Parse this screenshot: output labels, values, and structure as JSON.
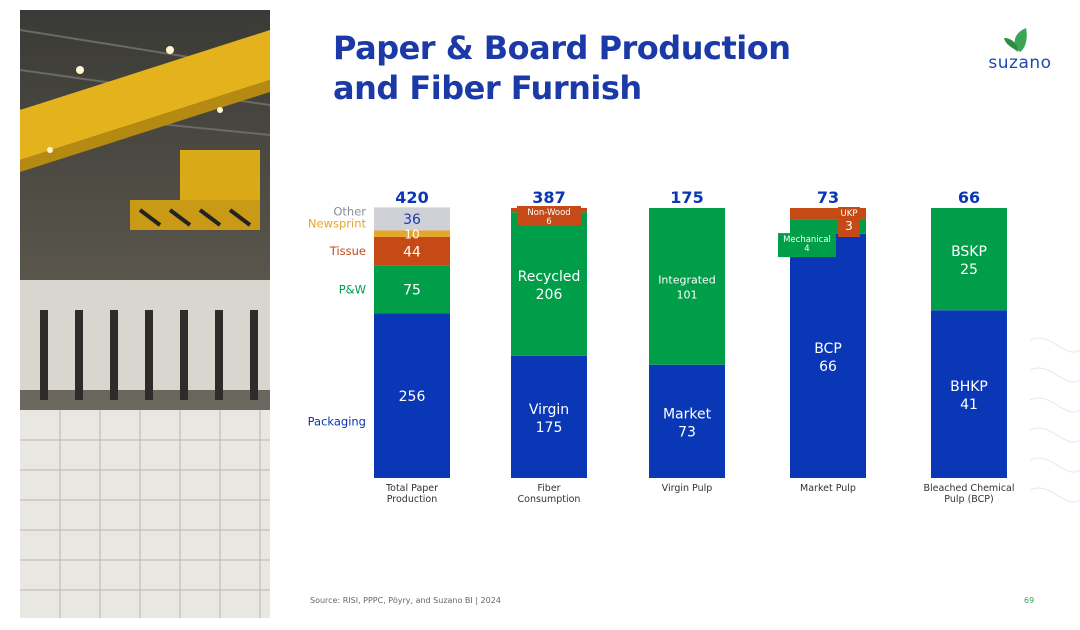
{
  "title_line1": "Paper & Board Production",
  "title_line2": "and Fiber Furnish",
  "logo_text": "suzano",
  "source": "Source: RISI, PPPC, Pöyry, and Suzano BI | 2024",
  "page_number": "69",
  "photo_alt": "Warehouse with crane and stacked pulp bales",
  "colors": {
    "blue": "#0a37b6",
    "green": "#009e48",
    "orange": "#c54a15",
    "newsprint": "#e7a52a",
    "other": "#cfd1d6",
    "title": "#1b3aa8"
  },
  "chart_data": {
    "type": "bar",
    "stacked": true,
    "ylim": [
      0,
      420
    ],
    "bars": [
      {
        "category": "Total Paper Production",
        "total": "420",
        "segments": [
          {
            "label": "",
            "value": 256,
            "value_label": "256",
            "color": "#0a37b6",
            "text_color": "#ffffff"
          },
          {
            "label": "",
            "value": 75,
            "value_label": "75",
            "color": "#009e48",
            "text_color": "#ffffff"
          },
          {
            "label": "",
            "value": 44,
            "value_label": "44",
            "color": "#c54a15",
            "text_color": "#ffffff"
          },
          {
            "label": "",
            "value": 10,
            "value_label": "10",
            "color": "#e7a52a",
            "text_color": "#ffffff"
          },
          {
            "label": "",
            "value": 36,
            "value_label": "36",
            "color": "#cfd1d6",
            "text_color": "#1b3aa8"
          }
        ],
        "legend": [
          {
            "label": "Packaging",
            "color": "#0a37b6"
          },
          {
            "label": "P&W",
            "color": "#009e48"
          },
          {
            "label": "Tissue",
            "color": "#c54a15"
          },
          {
            "label": "Newsprint",
            "color": "#e7a52a"
          },
          {
            "label": "Other",
            "color": "#8a8d94"
          }
        ]
      },
      {
        "category": "Fiber Consumption",
        "total": "387",
        "segments": [
          {
            "label": "Virgin",
            "value": 175,
            "value_label": "175",
            "color": "#0a37b6",
            "text_color": "#ffffff"
          },
          {
            "label": "Recycled",
            "value": 206,
            "value_label": "206",
            "color": "#009e48",
            "text_color": "#ffffff"
          },
          {
            "label": "Non-Wood",
            "value": 6,
            "value_label": "6",
            "color": "#c54a15",
            "text_color": "#ffffff",
            "callout": true
          }
        ]
      },
      {
        "category": "Virgin Pulp",
        "total": "175",
        "segments": [
          {
            "label": "Market",
            "value": 73,
            "value_label": "73",
            "color": "#0a37b6",
            "text_color": "#ffffff"
          },
          {
            "label": "Integrated",
            "value": 101,
            "value_label": "101",
            "color": "#009e48",
            "text_color": "#ffffff",
            "small_text": true
          }
        ]
      },
      {
        "category": "Market Pulp",
        "total": "73",
        "segments": [
          {
            "label": "BCP",
            "value": 66,
            "value_label": "66",
            "color": "#0a37b6",
            "text_color": "#ffffff"
          },
          {
            "label": "Mechanical",
            "value": 4,
            "value_label": "4",
            "color": "#009e48",
            "text_color": "#ffffff",
            "callout": true
          },
          {
            "label": "UKP",
            "value": 3,
            "value_label": "3",
            "color": "#c54a15",
            "text_color": "#ffffff",
            "callout": true
          }
        ]
      },
      {
        "category": "Bleached Chemical Pulp (BCP)",
        "total": "66",
        "segments": [
          {
            "label": "BHKP",
            "value": 41,
            "value_label": "41",
            "color": "#0a37b6",
            "text_color": "#ffffff"
          },
          {
            "label": "BSKP",
            "value": 25,
            "value_label": "25",
            "color": "#009e48",
            "text_color": "#ffffff"
          }
        ]
      }
    ]
  }
}
